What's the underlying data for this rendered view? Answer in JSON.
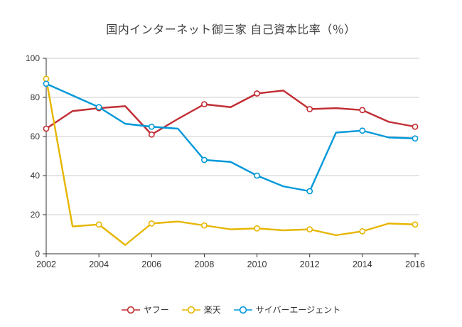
{
  "title": "国内インターネット御三家 自己資本比率（％）",
  "chart_data": {
    "type": "line",
    "title": "国内インターネット御三家 自己資本比率（％）",
    "xlabel": "",
    "ylabel": "",
    "x": [
      2002,
      2003,
      2004,
      2005,
      2006,
      2007,
      2008,
      2009,
      2010,
      2011,
      2012,
      2013,
      2014,
      2015,
      2016
    ],
    "x_ticks": [
      2002,
      2004,
      2006,
      2008,
      2010,
      2012,
      2014,
      2016
    ],
    "x_tick_labels": [
      "2002",
      "2004",
      "2006",
      "2008",
      "2010",
      "2012",
      "2014",
      "2016"
    ],
    "ylim": [
      0,
      100
    ],
    "y_ticks": [
      0,
      20,
      40,
      60,
      80,
      100
    ],
    "y_tick_labels": [
      "0",
      "20",
      "40",
      "60",
      "80",
      "100"
    ],
    "grid": true,
    "legend_position": "bottom",
    "marker_x": [
      2002,
      2004,
      2006,
      2008,
      2010,
      2012,
      2014,
      2016
    ],
    "grid_color": "#cccccc",
    "axis_color": "#333333",
    "label_color": "#333333",
    "series": [
      {
        "name": "ヤフー",
        "color": "#c12e34",
        "values": [
          64,
          73,
          74.5,
          75.5,
          61,
          69,
          76.5,
          75,
          82,
          83.5,
          74,
          74.5,
          73.5,
          67.5,
          65
        ]
      },
      {
        "name": "楽天",
        "color": "#e6b600",
        "values": [
          89.5,
          14,
          15,
          4.5,
          15.5,
          16.5,
          14.5,
          12.5,
          13,
          12,
          12.5,
          9.5,
          11.5,
          15.5,
          15
        ]
      },
      {
        "name": "サイバーエージェント",
        "color": "#0098d9",
        "values": [
          87,
          81,
          75,
          66.5,
          65,
          64,
          48,
          47,
          40,
          34.5,
          32,
          62,
          63,
          59.5,
          59
        ]
      }
    ]
  }
}
